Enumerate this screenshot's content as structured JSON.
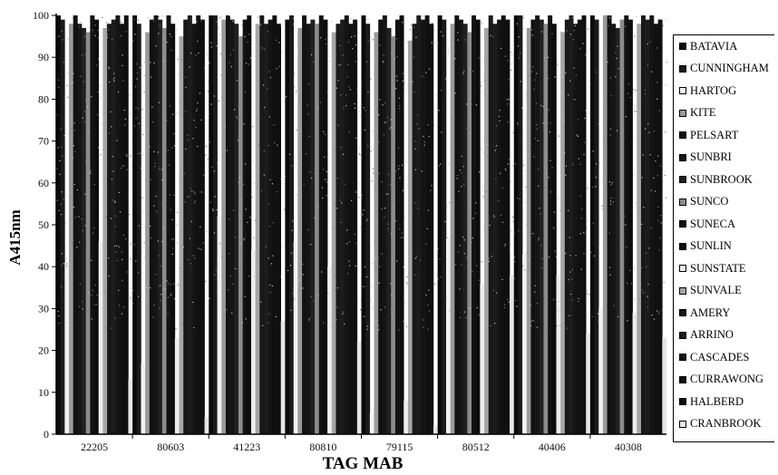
{
  "chart_data": {
    "type": "bar",
    "title": "",
    "xlabel": "TAG MAB",
    "ylabel": "A415nm",
    "ylim": [
      0,
      100
    ],
    "yticks": [
      0,
      10,
      20,
      30,
      40,
      50,
      60,
      70,
      80,
      90,
      100
    ],
    "categories": [
      "22205",
      "80603",
      "41223",
      "80810",
      "79115",
      "80512",
      "40406",
      "40308"
    ],
    "legend_position": "right",
    "series": [
      {
        "name": "BATAVIA",
        "color": "#0a0a0a",
        "values": [
          100,
          100,
          100,
          99,
          100,
          100,
          100,
          100
        ]
      },
      {
        "name": "CUNNINGHAM",
        "color": "#1a1a1a",
        "values": [
          99,
          98,
          100,
          100,
          98,
          99,
          100,
          99
        ]
      },
      {
        "name": "HARTOG",
        "color": "#f2f2f2",
        "values": [
          41,
          17,
          52,
          46,
          5,
          47,
          43,
          30
        ]
      },
      {
        "name": "KITE",
        "color": "#9a9a9a",
        "values": [
          98,
          96,
          99,
          97,
          96,
          98,
          97,
          100
        ]
      },
      {
        "name": "PELSART",
        "color": "#111111",
        "values": [
          100,
          99,
          100,
          100,
          99,
          100,
          99,
          100
        ]
      },
      {
        "name": "SUNBRI",
        "color": "#151515",
        "values": [
          98,
          100,
          99,
          98,
          100,
          99,
          100,
          98
        ]
      },
      {
        "name": "SUNBROOK",
        "color": "#202020",
        "values": [
          97,
          99,
          98,
          99,
          97,
          98,
          99,
          97
        ]
      },
      {
        "name": "SUNCO",
        "color": "#8c8c8c",
        "values": [
          96,
          97,
          95,
          98,
          95,
          96,
          98,
          99
        ]
      },
      {
        "name": "SUNECA",
        "color": "#121212",
        "values": [
          100,
          100,
          99,
          100,
          99,
          100,
          100,
          100
        ]
      },
      {
        "name": "SUNLIN",
        "color": "#0d0d0d",
        "values": [
          99,
          98,
          100,
          99,
          100,
          99,
          98,
          99
        ]
      },
      {
        "name": "SUNSTATE",
        "color": "#eeeeee",
        "values": [
          46,
          23,
          44,
          40,
          8,
          36,
          38,
          29
        ]
      },
      {
        "name": "SUNVALE",
        "color": "#a6a6a6",
        "values": [
          97,
          95,
          98,
          96,
          94,
          97,
          96,
          98
        ]
      },
      {
        "name": "AMERY",
        "color": "#181818",
        "values": [
          98,
          99,
          100,
          98,
          98,
          100,
          99,
          100
        ]
      },
      {
        "name": "ARRINO",
        "color": "#1c1c1c",
        "values": [
          99,
          100,
          98,
          99,
          100,
          98,
          100,
          99
        ]
      },
      {
        "name": "CASCADES",
        "color": "#141414",
        "values": [
          100,
          98,
          99,
          100,
          99,
          99,
          98,
          100
        ]
      },
      {
        "name": "CURRAWONG",
        "color": "#101010",
        "values": [
          98,
          100,
          100,
          98,
          100,
          100,
          99,
          98
        ]
      },
      {
        "name": "HALBERD",
        "color": "#0f0f0f",
        "values": [
          100,
          99,
          98,
          99,
          98,
          99,
          100,
          99
        ]
      },
      {
        "name": "CRANBROOK",
        "color": "#e6e6e6",
        "values": [
          13,
          4,
          27,
          22,
          2,
          38,
          24,
          23
        ]
      }
    ]
  }
}
